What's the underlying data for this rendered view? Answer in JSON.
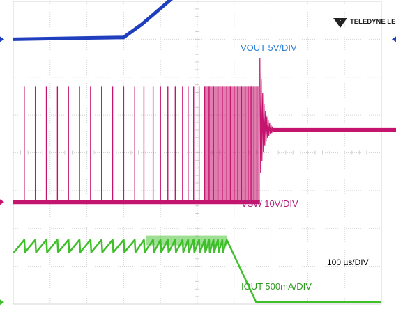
{
  "chart_data": {
    "type": "line",
    "timebase": "100 µs/DIV",
    "grid": true,
    "divisions": {
      "horizontal": 10,
      "vertical": 8
    },
    "brand": "TELEDYNE LECROY",
    "series": [
      {
        "name": "VOUT 5V/DIV",
        "color": "#1f3fbf",
        "label_color": "#2a7fd4",
        "y_unit_div": 1,
        "points_div": [
          [
            0,
            7.0
          ],
          [
            3.0,
            7.05
          ],
          [
            3.5,
            7.4
          ],
          [
            5.0,
            8.65
          ],
          [
            5.6,
            9.05
          ],
          [
            6.5,
            9.12
          ],
          [
            10,
            9.12
          ]
        ]
      },
      {
        "name": "VSW 10V/DIV",
        "color": "#c4146e",
        "label_color": "#b0217a",
        "low_level_div": 2.7,
        "high_level_div": 5.75,
        "settled_level_div": 4.6,
        "switching_end_div": 6.7,
        "burst_at_div": 11.35,
        "pulse_times_div": [
          0.3,
          0.6,
          0.9,
          1.2,
          1.5,
          1.8,
          2.1,
          2.4,
          2.7,
          3.0,
          3.3,
          3.55,
          3.8,
          4.0,
          4.2,
          4.4,
          4.6,
          4.75,
          4.9,
          5.05,
          5.2,
          5.32,
          5.44,
          5.56,
          5.68,
          5.8,
          5.9,
          6.0,
          6.1,
          6.2,
          6.3,
          6.38,
          6.46,
          6.54,
          6.62
        ]
      },
      {
        "name": "IOUT 500mA/DIV",
        "color": "#3fbf2a",
        "label_color": "#2e9a22",
        "high_div": 1.7,
        "low_div": 0.05,
        "fall_start_div": 5.8,
        "fall_end_div": 6.6
      }
    ]
  }
}
